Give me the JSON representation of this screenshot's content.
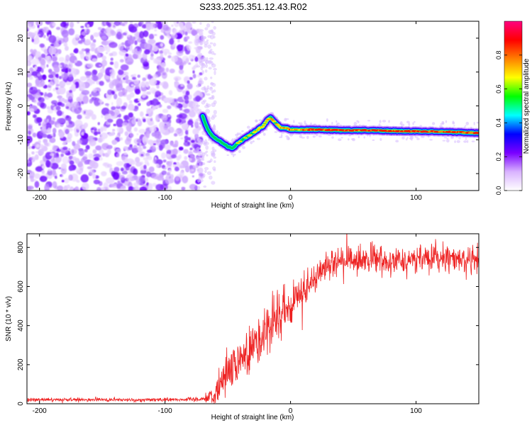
{
  "figure": {
    "title": "S233.2025.351.12.43.R02"
  },
  "chart_data": [
    {
      "type": "heatmap",
      "name": "spectrogram",
      "xlabel": "Height of straight line (km)",
      "ylabel": "Frequency (Hz)",
      "xlim": [
        -210,
        150
      ],
      "ylim": [
        -25,
        25
      ],
      "xticks": [
        -200,
        -100,
        0,
        100
      ],
      "yticks": [
        -20,
        -10,
        0,
        10,
        20
      ],
      "colorbar": {
        "label": "Normalized spectral amplitude",
        "range": [
          0,
          1
        ],
        "ticks": [
          "0.0",
          "0.2",
          "0.4",
          "0.6",
          "0.8"
        ],
        "colors": [
          "#ffffff",
          "#d9b3ff",
          "#7a00ff",
          "#0000ff",
          "#00ffff",
          "#00ff00",
          "#ffff00",
          "#ff8000",
          "#ff0000",
          "#ff0080"
        ]
      },
      "noise_region_x": [
        -210,
        -70
      ],
      "signal_track": {
        "x": [
          -70,
          -66,
          -62,
          -58,
          -54,
          -50,
          -46,
          -42,
          -38,
          -34,
          -30,
          -26,
          -22,
          -18,
          -16,
          -12,
          -8,
          -4,
          0,
          10,
          20,
          40,
          60,
          80,
          100,
          120,
          150
        ],
        "y": [
          -3,
          -7,
          -9,
          -10,
          -11,
          -12,
          -12.5,
          -11,
          -10,
          -9,
          -8,
          -7,
          -6,
          -4,
          -3.5,
          -5,
          -6.5,
          -6.5,
          -7,
          -7,
          -7,
          -7.2,
          -7.2,
          -7.4,
          -7.5,
          -7.6,
          -8
        ],
        "peak_amplitude": [
          0.3,
          0.35,
          0.4,
          0.45,
          0.5,
          0.5,
          0.55,
          0.55,
          0.6,
          0.6,
          0.6,
          0.65,
          0.65,
          0.7,
          0.7,
          0.7,
          0.75,
          0.75,
          0.8,
          0.85,
          0.9,
          0.92,
          0.95,
          0.95,
          0.95,
          0.95,
          0.9
        ]
      }
    },
    {
      "type": "line",
      "name": "snr",
      "xlabel": "Height of straight line (km)",
      "ylabel": "SNR (10 * v/v)",
      "xlim": [
        -210,
        150
      ],
      "ylim": [
        0,
        870
      ],
      "xticks": [
        -200,
        -100,
        0,
        100
      ],
      "yticks": [
        0,
        200,
        400,
        600,
        800
      ],
      "series": [
        {
          "name": "SNR",
          "color": "#ee2222",
          "x": [
            -210,
            -180,
            -150,
            -120,
            -90,
            -70,
            -60,
            -55,
            -50,
            -45,
            -40,
            -35,
            -30,
            -25,
            -20,
            -15,
            -10,
            -5,
            0,
            5,
            10,
            15,
            20,
            25,
            30,
            40,
            50,
            60,
            70,
            80,
            90,
            100,
            110,
            120,
            130,
            140,
            150
          ],
          "y": [
            20,
            20,
            20,
            20,
            22,
            25,
            40,
            120,
            180,
            200,
            230,
            260,
            300,
            330,
            370,
            400,
            430,
            470,
            500,
            540,
            570,
            600,
            650,
            690,
            720,
            730,
            730,
            735,
            740,
            735,
            740,
            740,
            745,
            745,
            740,
            740,
            735
          ],
          "noise": [
            8,
            8,
            8,
            8,
            8,
            10,
            40,
            80,
            90,
            90,
            90,
            90,
            95,
            100,
            110,
            120,
            120,
            110,
            100,
            90,
            80,
            70,
            60,
            60,
            60,
            60,
            60,
            60,
            60,
            60,
            60,
            60,
            60,
            60,
            60,
            60,
            60
          ]
        }
      ]
    }
  ]
}
